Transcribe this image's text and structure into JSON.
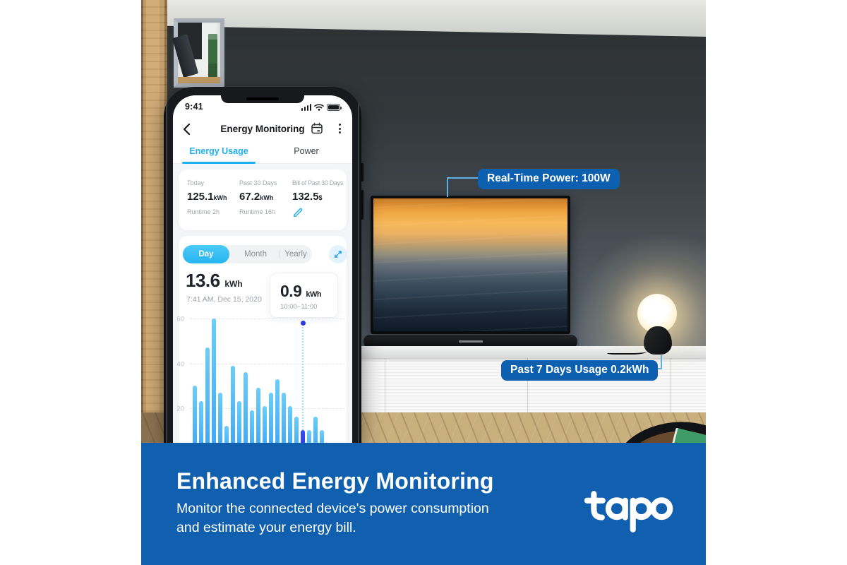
{
  "phone": {
    "status": {
      "time": "9:41"
    },
    "header": {
      "title": "Energy Monitoring"
    },
    "tabs": {
      "energy_usage": "Energy Usage",
      "power": "Power"
    },
    "stats": {
      "columns": [
        {
          "label": "Today",
          "value": "125.1",
          "unit": "kWh",
          "sub": "Runtime 2h"
        },
        {
          "label": "Past 30 Days",
          "value": "67.2",
          "unit": "kWh",
          "sub": "Runtime 16h"
        },
        {
          "label": "Bill of Past 30 Days",
          "value": "132.5",
          "unit": "$",
          "sub": ""
        }
      ]
    },
    "chart_card": {
      "range_tabs": {
        "day": "Day",
        "month": "Month",
        "yearly": "Yearly",
        "selected": "Day"
      },
      "total": {
        "value": "13.6",
        "unit": "kWh",
        "timestamp": "7:41 AM, Dec 15, 2020"
      },
      "tooltip": {
        "value": "0.9",
        "unit": "kWh",
        "range": "10:00~11:00"
      }
    }
  },
  "chart_data": {
    "type": "bar",
    "yticks": [
      20,
      40,
      60
    ],
    "ylim": [
      0,
      64
    ],
    "values": [
      30,
      23,
      47,
      60,
      27,
      12,
      39,
      23,
      36,
      19,
      29,
      21,
      27,
      33,
      27,
      21,
      16,
      10,
      10,
      16,
      10
    ],
    "selected_index": 17,
    "selected_label": "10:00~11:00",
    "selected_value_kwh": 0.9,
    "grid": "dashed-horizontal",
    "legend": "none"
  },
  "callouts": {
    "realtime_power": "Real-Time Power: 100W",
    "past7days": "Past 7 Days Usage 0.2kWh"
  },
  "banner": {
    "title": "Enhanced Energy Monitoring",
    "subtitle_line1": "Monitor the connected device's power consumption",
    "subtitle_line2": "and estimate your energy bill.",
    "brand": "tapo"
  },
  "colors": {
    "banner_blue": "#1160b0",
    "callout_blue": "#0d5fb0",
    "app_cyan": "#1fb0f0",
    "bar_blue": "#3ea6f4",
    "bar_selected": "#2c3ae0"
  }
}
